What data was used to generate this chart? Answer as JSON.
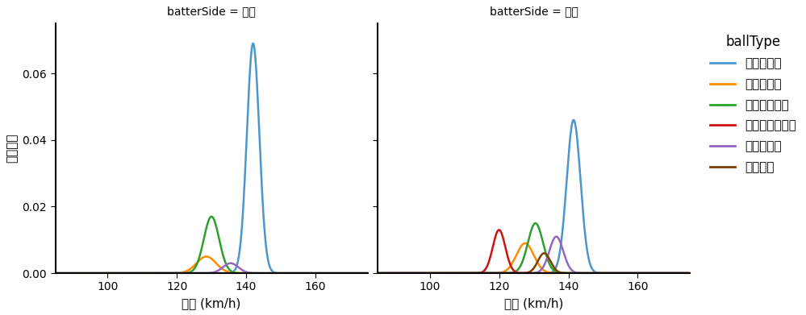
{
  "title_left": "batterSide = 左打",
  "title_right": "batterSide = 右打",
  "xlabel": "球速 (km/h)",
  "ylabel": "確率密度",
  "legend_title": "ballType",
  "ball_types": [
    "ストレート",
    "スライダー",
    "カットボール",
    "チェンジアップ",
    "ツーシーム",
    "フォーク"
  ],
  "colors": [
    "#4C96CC",
    "#FF8C00",
    "#2CA02C",
    "#CC1111",
    "#9467BD",
    "#7B3F00"
  ],
  "xlim": [
    85,
    175
  ],
  "ylim": [
    0,
    0.075
  ],
  "yticks": [
    0.0,
    0.02,
    0.04,
    0.06
  ],
  "xticks": [
    100,
    120,
    140,
    160
  ],
  "left": {
    "ストレート": {
      "mean": 142.0,
      "std": 1.8,
      "scale": 0.069
    },
    "スライダー": {
      "mean": 128.5,
      "std": 2.8,
      "scale": 0.005
    },
    "カットボール": {
      "mean": 130.0,
      "std": 2.2,
      "scale": 0.017
    },
    "チェンジアップ": null,
    "ツーシーム": {
      "mean": 135.5,
      "std": 2.2,
      "scale": 0.003
    },
    "フォーク": null
  },
  "right": {
    "ストレート": {
      "mean": 141.5,
      "std": 2.0,
      "scale": 0.046
    },
    "スライダー": {
      "mean": 127.5,
      "std": 2.5,
      "scale": 0.009
    },
    "カットボール": {
      "mean": 130.5,
      "std": 2.2,
      "scale": 0.015
    },
    "チェンジアップ": {
      "mean": 120.0,
      "std": 1.8,
      "scale": 0.013
    },
    "ツーシーム": {
      "mean": 136.5,
      "std": 2.0,
      "scale": 0.011
    },
    "フォーク": {
      "mean": 133.0,
      "std": 1.8,
      "scale": 0.006
    }
  },
  "background_color": "#FFFFFF"
}
